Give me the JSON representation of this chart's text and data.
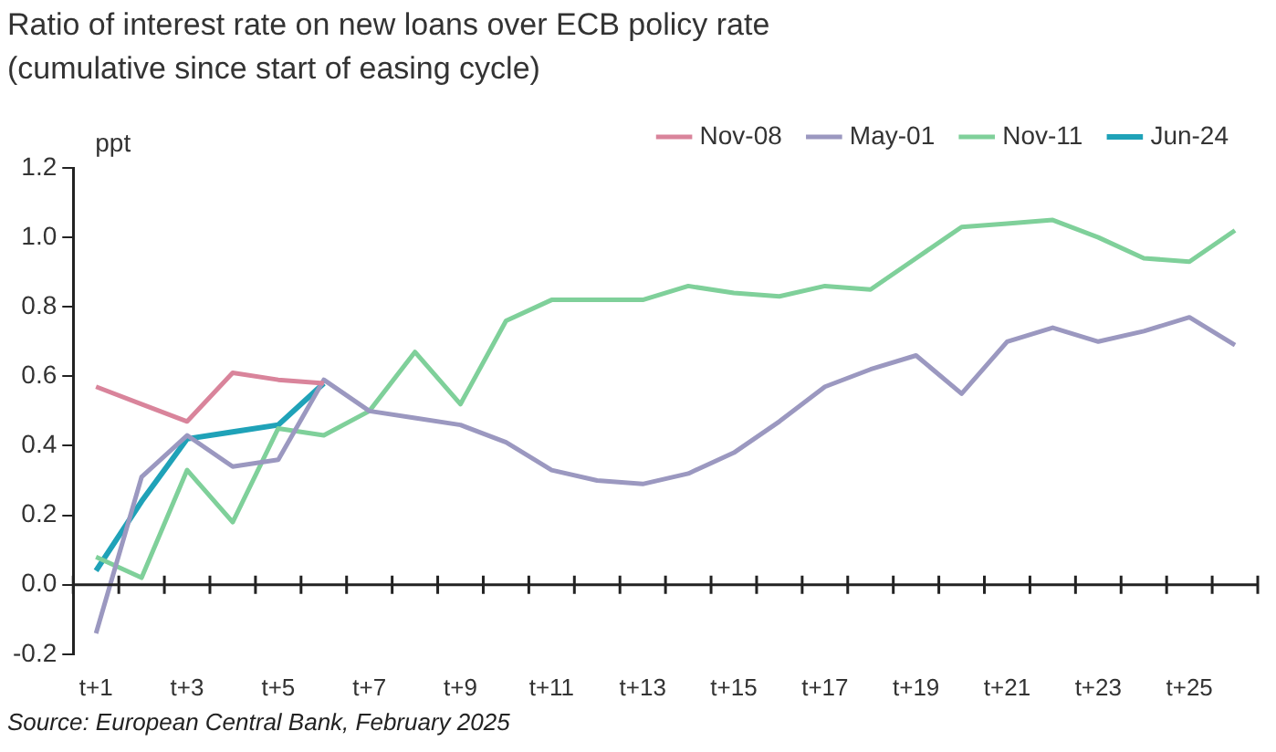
{
  "chart_data": {
    "type": "line",
    "title": "Ratio of interest rate on new loans over ECB policy rate\n(cumulative since start of easing cycle)",
    "ylabel": "ppt",
    "categories": [
      "t+1",
      null,
      "t+3",
      null,
      "t+5",
      null,
      "t+7",
      null,
      "t+9",
      null,
      "t+11",
      null,
      "t+13",
      null,
      "t+15",
      null,
      "t+17",
      null,
      "t+19",
      null,
      "t+21",
      null,
      "t+23",
      null,
      "t+25",
      null
    ],
    "series": [
      {
        "name": "Nov-08",
        "color": "#d9849b",
        "values": [
          0.57,
          0.52,
          0.47,
          0.61,
          0.59,
          0.58,
          null,
          null,
          null,
          null,
          null,
          null,
          null,
          null,
          null,
          null,
          null,
          null,
          null,
          null,
          null,
          null,
          null,
          null,
          null,
          null
        ]
      },
      {
        "name": "May-01",
        "color": "#9b98c0",
        "values": [
          -0.14,
          0.31,
          0.43,
          0.34,
          0.36,
          0.59,
          0.5,
          0.48,
          0.46,
          0.41,
          0.33,
          0.3,
          0.29,
          0.32,
          0.38,
          0.47,
          0.57,
          0.62,
          0.66,
          0.55,
          0.7,
          0.74,
          0.7,
          0.73,
          0.77,
          0.69
        ]
      },
      {
        "name": "Nov-11",
        "color": "#7fd09a",
        "values": [
          0.08,
          0.02,
          0.33,
          0.18,
          0.45,
          0.43,
          0.5,
          0.67,
          0.52,
          0.76,
          0.82,
          0.82,
          0.82,
          0.86,
          0.84,
          0.83,
          0.86,
          0.85,
          0.94,
          1.03,
          1.04,
          1.05,
          1.0,
          0.94,
          0.93,
          1.02
        ]
      },
      {
        "name": "Jun-24",
        "color": "#1fa2b8",
        "values": [
          0.04,
          0.24,
          0.42,
          0.44,
          0.46,
          0.58,
          null,
          null,
          null,
          null,
          null,
          null,
          null,
          null,
          null,
          null,
          null,
          null,
          null,
          null,
          null,
          null,
          null,
          null,
          null,
          null
        ]
      }
    ],
    "ylim": [
      -0.2,
      1.2
    ],
    "yticks": [
      -0.2,
      {
        "value": 0,
        "label": "0.0"
      },
      0.2,
      0.4,
      0.6,
      0.8,
      {
        "value": 1,
        "label": "1.0"
      },
      1.2
    ],
    "legend": "top",
    "marker": "none",
    "line_style": "solid",
    "annotations": [
      "Source: European Central Bank, February 2025"
    ]
  }
}
